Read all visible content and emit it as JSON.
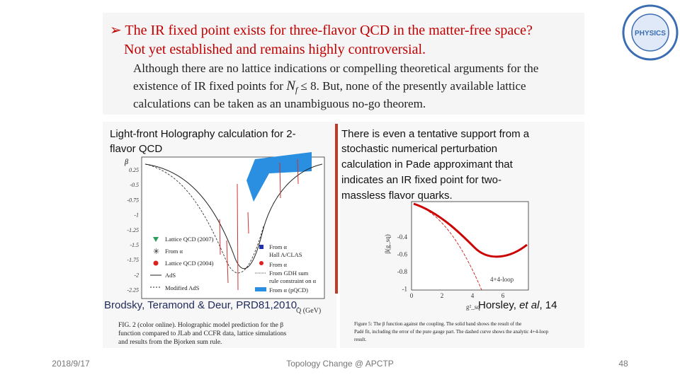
{
  "slide": {
    "heading": {
      "bullet": "➢ The IR fixed point exists for three-flavor QCD in the matter-free space?",
      "subline": "Not yet established and remains highly controversial.",
      "body": [
        "Although there are no lattice indications or compelling theoretical arguments for the",
        [
          "existence of IR fixed points for ",
          "N",
          "f",
          " ≤ 8. But, none of the presently available lattice"
        ],
        "calculations can be taken as an unambiguous no-go theorem."
      ]
    },
    "logo": {
      "text": "PHYSICS"
    },
    "left": {
      "title": [
        "Light-front Holography calculation for 2-",
        "flavor QCD"
      ],
      "yticks": [
        "0.25",
        "-0.5",
        "-0.75",
        "-1",
        "-1.25",
        "-1.5",
        "-1.75",
        "-2",
        "-2.25"
      ],
      "legend_left": [
        "Lattice QCD (2007)",
        "From α",
        "Lattice QCD (2004)",
        "AdS",
        "Modified AdS"
      ],
      "legend_right": [
        "From α",
        "Hall A/CLAS",
        "From α",
        "From GDH sum",
        "rule constraint on α",
        "From α (pQCD)"
      ],
      "xlabel": "Q (GeV)",
      "ylabel": "β",
      "citation": "Brodsky, Teramond & Deur, PRD81,2010.",
      "caption": [
        "FIG. 2 (color online). Holographic model prediction for the β",
        "function compared to JLab and CCFR data, lattice simulations",
        "and results from the Bjorken sum rule."
      ]
    },
    "right": {
      "text": [
        "There is even a tentative support from a",
        "stochastic numerical perturbation",
        "calculation in Pade approximant  that",
        "indicates an IR fixed point for two-",
        "massless flavor quarks."
      ],
      "yticks": [
        "-0.4",
        "-0.6",
        "-0.8",
        "-1"
      ],
      "xticks": [
        "0",
        "2",
        "4",
        "6"
      ],
      "curve_label": "4+4-loop",
      "ylabel": "β(g_sq)",
      "xlabel": "g²_sq",
      "citation": [
        "Horsley, ",
        "et al",
        ", 14"
      ],
      "caption": [
        "Figure 5: The β function against the coupling. The solid band shows the result of the",
        "Padé fit, including the error of the pure gauge part. The dashed curve shows the analytic 4+4-loop",
        "result."
      ]
    },
    "footer": {
      "date": "2018/9/17",
      "center": "Topology Change @ APCTP",
      "page": "48"
    }
  }
}
